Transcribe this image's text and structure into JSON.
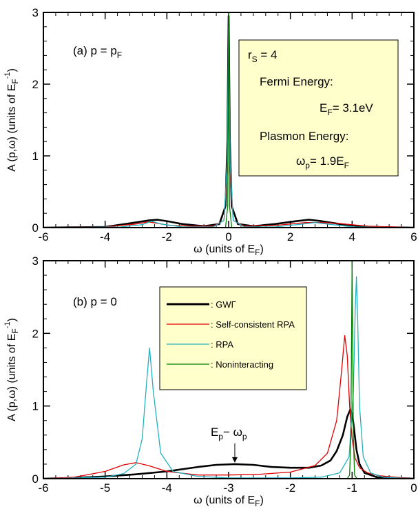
{
  "chart_data": [
    {
      "type": "line",
      "panel_label": "(a) p = p",
      "panel_label_sub": "F",
      "xlabel": "ω (units of E",
      "xlabel_sub": "F",
      "xlabel_end": ")",
      "ylabel": "A (p,ω)  (units of E",
      "ylabel_sub": "F",
      "ylabel_sup": "-1",
      "ylabel_end": ")",
      "xlim": [
        -6,
        6
      ],
      "ylim": [
        0,
        3
      ],
      "xticks": [
        -6,
        -4,
        -2,
        0,
        2,
        4,
        6
      ],
      "yticks": [
        0,
        1,
        2,
        3
      ],
      "info_box": {
        "rs": "r",
        "rs_sub": "S",
        "rs_value": " = 4",
        "fermi_title": "Fermi Energy:",
        "fermi_value_pre": "E",
        "fermi_value_sub": "F",
        "fermi_value_post": "= 3.1eV",
        "plasmon_title": "Plasmon Energy:",
        "plasmon_value_pre": "ω",
        "plasmon_value_sub": "p",
        "plasmon_value_post": "= 1.9E",
        "plasmon_value_sub2": "F"
      },
      "series": [
        {
          "color": "#000000",
          "x": [
            -6,
            -4,
            -3.2,
            -2.6,
            -2.3,
            -2.0,
            -1.5,
            -0.8,
            -0.3,
            -0.1,
            -0.04,
            0,
            0.04,
            0.1,
            0.3,
            0.8,
            1.5,
            2.2,
            2.6,
            3.0,
            3.6,
            4.5,
            6
          ],
          "y": [
            0,
            0.01,
            0.06,
            0.1,
            0.11,
            0.09,
            0.05,
            0.02,
            0.05,
            0.3,
            1.2,
            2.95,
            1.2,
            0.3,
            0.05,
            0.02,
            0.05,
            0.09,
            0.11,
            0.09,
            0.05,
            0.01,
            0
          ]
        },
        {
          "color": "#e00000",
          "x": [
            -6,
            -4,
            -3.0,
            -2.6,
            -2.3,
            -1.9,
            -1.2,
            -0.5,
            -0.15,
            -0.05,
            0,
            0.05,
            0.15,
            0.5,
            1.5,
            2.5,
            3.0,
            3.5,
            4.5,
            6
          ],
          "y": [
            0,
            0.01,
            0.05,
            0.08,
            0.06,
            0.03,
            0.02,
            0.02,
            0.1,
            0.8,
            2.7,
            0.8,
            0.1,
            0.02,
            0.03,
            0.07,
            0.07,
            0.06,
            0.02,
            0
          ]
        },
        {
          "color": "#20b0c0",
          "x": [
            -6,
            -3.5,
            -2.8,
            -2.5,
            -2.2,
            -1.5,
            -0.5,
            -0.15,
            -0.05,
            0,
            0.05,
            0.15,
            0.5,
            1.5,
            2.4,
            2.8,
            3.2,
            4,
            6
          ],
          "y": [
            0,
            0.01,
            0.04,
            0.09,
            0.05,
            0.01,
            0.01,
            0.1,
            0.9,
            2.8,
            0.9,
            0.1,
            0.01,
            0.01,
            0.05,
            0.07,
            0.05,
            0.01,
            0
          ]
        },
        {
          "color": "#008000",
          "x": [
            -6,
            -0.1,
            -0.03,
            0,
            0.03,
            0.1,
            6
          ],
          "y": [
            0,
            0,
            0.3,
            3.0,
            0.3,
            0,
            0
          ]
        }
      ]
    },
    {
      "type": "line",
      "panel_label": "(b) p = 0",
      "xlabel": "ω (units of E",
      "xlabel_sub": "F",
      "xlabel_end": ")",
      "ylabel": "A (p,ω)  (units of E",
      "ylabel_sub": "F",
      "ylabel_sup": "-1",
      "ylabel_end": ")",
      "xlim": [
        -6,
        0
      ],
      "ylim": [
        0,
        3
      ],
      "xticks": [
        -6,
        -5,
        -4,
        -3,
        -2,
        -1,
        0
      ],
      "yticks": [
        0,
        1,
        2,
        3
      ],
      "annotation": {
        "text_pre": "E",
        "text_sub1": "p",
        "text_mid": "− ω",
        "text_sub2": "p",
        "x": -2.9,
        "y": 0.2
      },
      "legend": {
        "placement": "top-center",
        "entries": [
          {
            "label": ": GWΓ",
            "color": "#000000",
            "bold": true
          },
          {
            "label": ": Self-consistent RPA",
            "color": "#e00000"
          },
          {
            "label": ": RPA",
            "color": "#20b0c0"
          },
          {
            "label": ": Noninteracting",
            "color": "#008000"
          }
        ]
      },
      "series": [
        {
          "name": "GWΓ",
          "color": "#000000",
          "x": [
            -6,
            -5.5,
            -5,
            -4.5,
            -4,
            -3.5,
            -3.2,
            -2.9,
            -2.6,
            -2.3,
            -2,
            -1.7,
            -1.5,
            -1.35,
            -1.25,
            -1.15,
            -1.08,
            -1.03,
            -1.0,
            -0.97,
            -0.93,
            -0.88,
            -0.8,
            -0.6,
            -0.3,
            0
          ],
          "y": [
            0,
            0.01,
            0.03,
            0.06,
            0.1,
            0.16,
            0.19,
            0.2,
            0.19,
            0.16,
            0.15,
            0.15,
            0.18,
            0.25,
            0.38,
            0.6,
            0.85,
            0.95,
            0.9,
            0.7,
            0.4,
            0.2,
            0.08,
            0.02,
            0.01,
            0
          ]
        },
        {
          "name": "Self-consistent RPA",
          "color": "#e00000",
          "x": [
            -6,
            -5.5,
            -5.0,
            -4.7,
            -4.5,
            -4.3,
            -4.0,
            -3.5,
            -3,
            -2.5,
            -2,
            -1.6,
            -1.4,
            -1.25,
            -1.18,
            -1.12,
            -1.08,
            -1.04,
            -1.0,
            -0.95,
            -0.88,
            -0.75,
            -0.55,
            -0.3,
            0
          ],
          "y": [
            0,
            0.02,
            0.1,
            0.19,
            0.22,
            0.18,
            0.1,
            0.05,
            0.05,
            0.06,
            0.09,
            0.18,
            0.35,
            0.8,
            1.4,
            1.97,
            1.7,
            1.0,
            0.55,
            0.28,
            0.15,
            0.08,
            0.04,
            0.02,
            0
          ]
        },
        {
          "name": "RPA",
          "color": "#20b0c0",
          "x": [
            -6,
            -5,
            -4.7,
            -4.5,
            -4.4,
            -4.33,
            -4.28,
            -4.22,
            -4.1,
            -3.9,
            -3.5,
            -3,
            -2,
            -1.5,
            -1.2,
            -1.05,
            -0.98,
            -0.95,
            -0.93,
            -0.91,
            -0.88,
            -0.82,
            -0.7,
            -0.5,
            0
          ],
          "y": [
            0,
            0.02,
            0.07,
            0.2,
            0.55,
            1.3,
            1.8,
            1.2,
            0.35,
            0.1,
            0.03,
            0.01,
            0.01,
            0.02,
            0.08,
            0.3,
            1.2,
            2.3,
            2.78,
            2.2,
            1.0,
            0.3,
            0.08,
            0.02,
            0
          ]
        },
        {
          "name": "Noninteracting",
          "color": "#008000",
          "x": [
            -6,
            -1.08,
            -1.04,
            -1.02,
            -1.0,
            -0.98,
            -0.96,
            -0.92,
            0
          ],
          "y": [
            0,
            0,
            0.05,
            0.6,
            3.0,
            0.6,
            0.05,
            0,
            0
          ]
        }
      ]
    }
  ]
}
